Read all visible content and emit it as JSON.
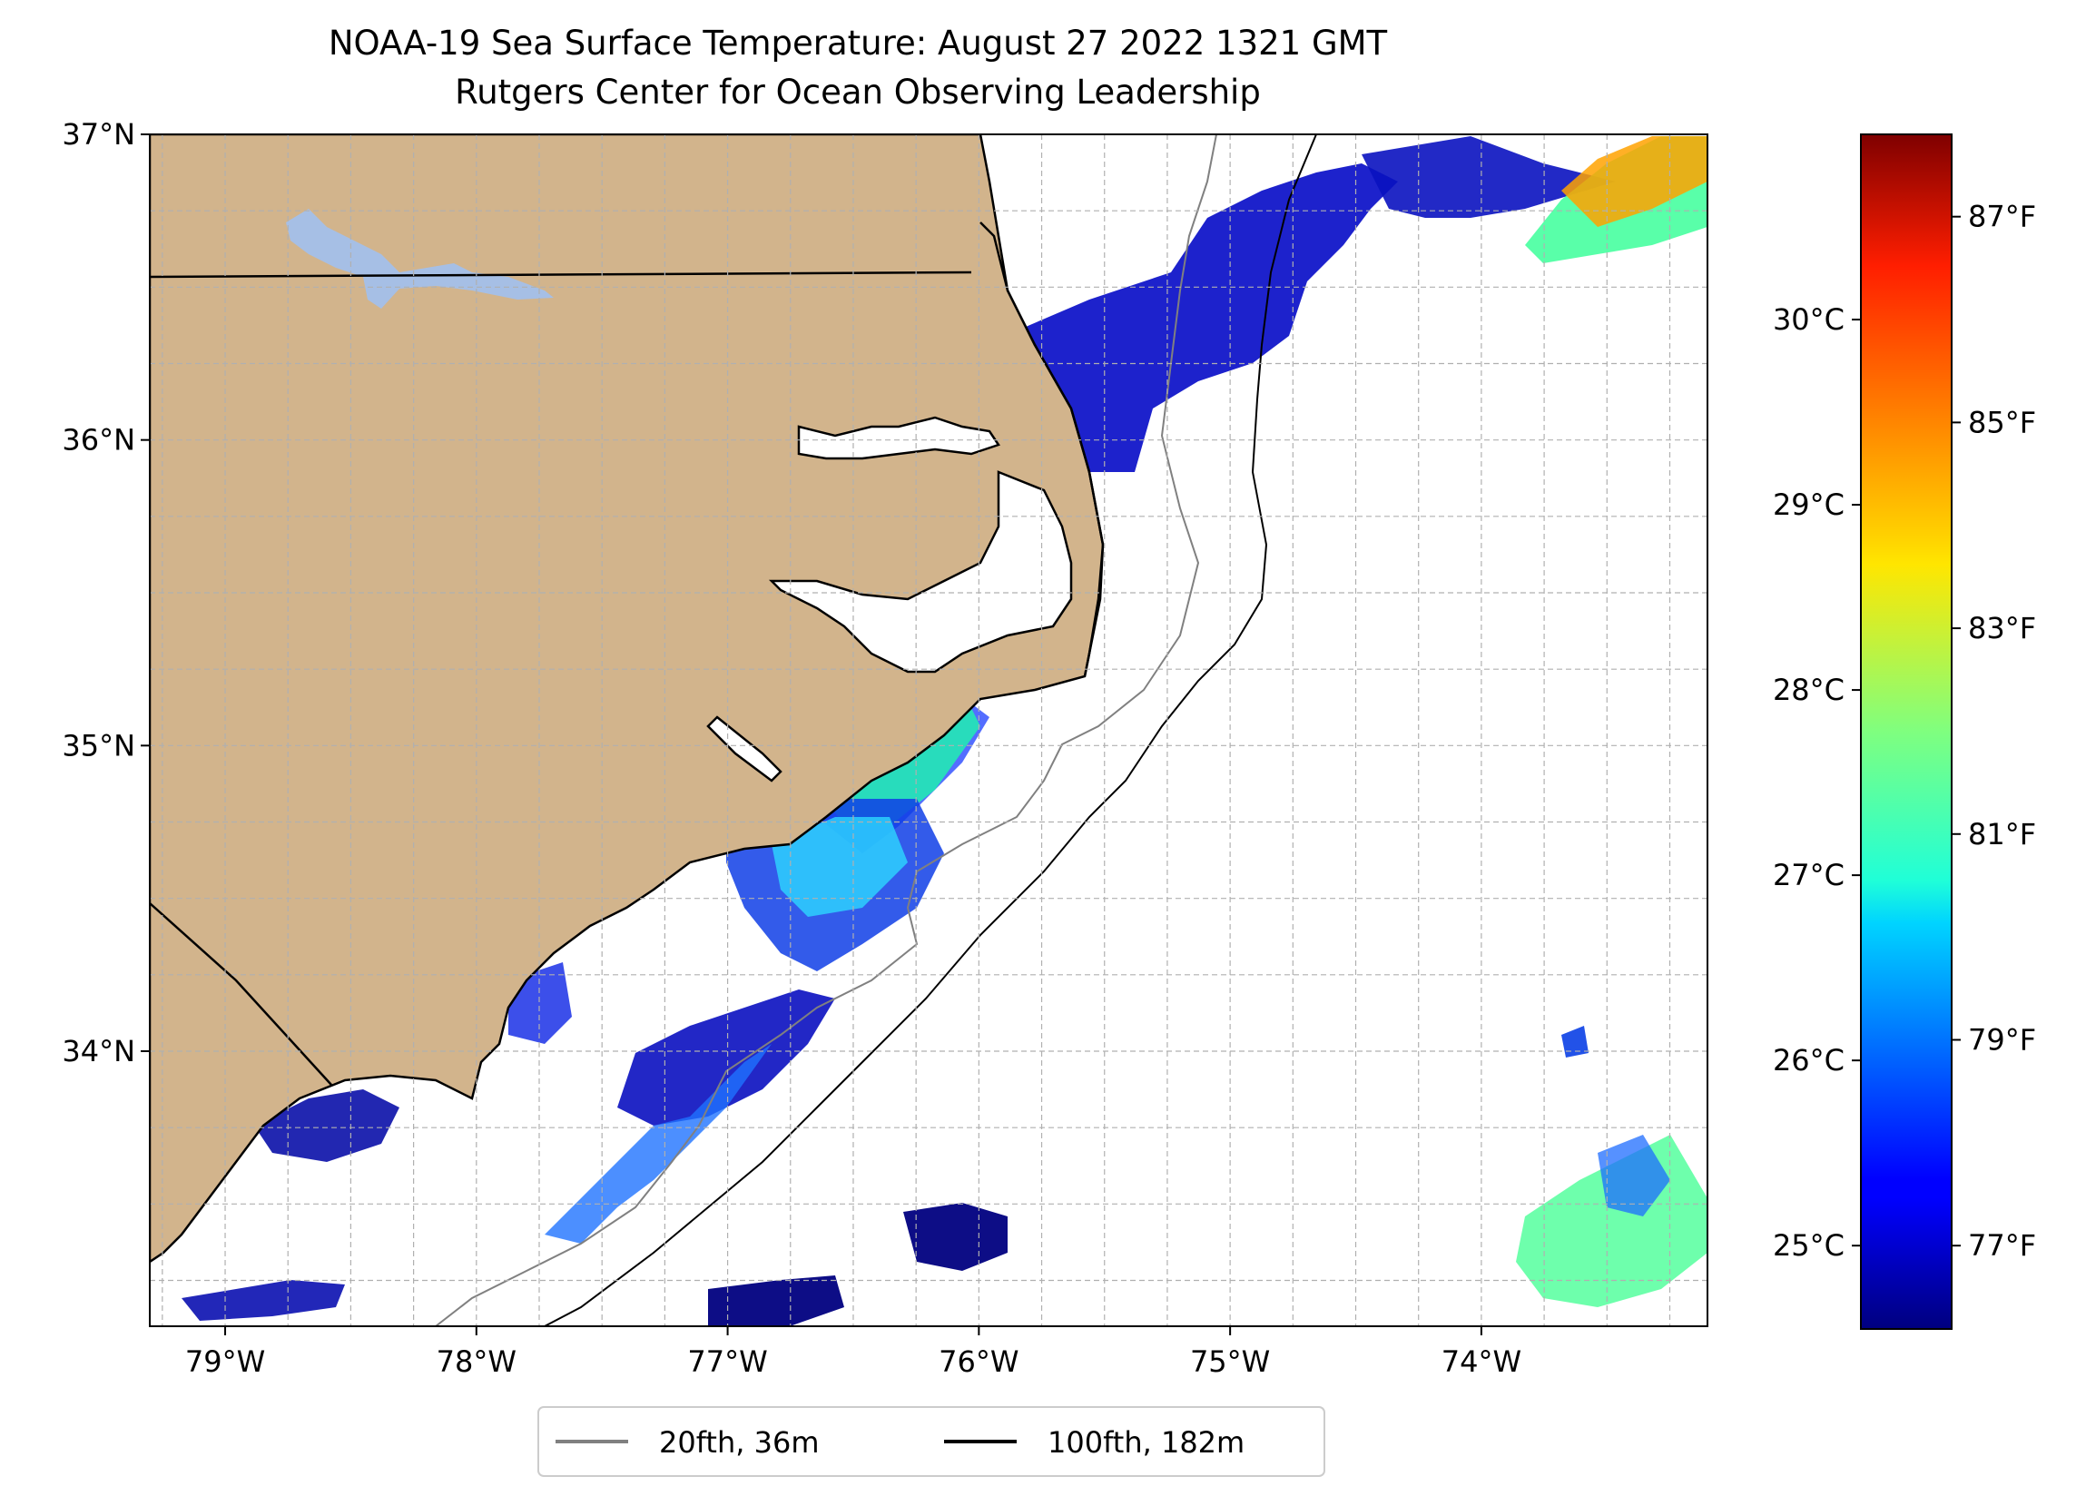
{
  "title": "NOAA-19 Sea Surface Temperature: August 27 2022 1321 GMT",
  "subtitle": "Rutgers Center for Ocean Observing Leadership",
  "map": {
    "lon_range": [
      -79.3,
      -73.1
    ],
    "lat_range": [
      33.1,
      37.0
    ],
    "lon_ticks": [
      {
        "value": -79,
        "label": "79°W"
      },
      {
        "value": -78,
        "label": "78°W"
      },
      {
        "value": -77,
        "label": "77°W"
      },
      {
        "value": -76,
        "label": "76°W"
      },
      {
        "value": -75,
        "label": "75°W"
      },
      {
        "value": -74,
        "label": "74°W"
      }
    ],
    "lat_ticks": [
      {
        "value": 37,
        "label": "37°N"
      },
      {
        "value": 36,
        "label": "36°N"
      },
      {
        "value": 35,
        "label": "35°N"
      },
      {
        "value": 34,
        "label": "34°N"
      }
    ],
    "land_color": "#d2b48c",
    "lake_color": "#a6bfe5",
    "grid": true
  },
  "legend": {
    "placement": "below map",
    "entries": [
      {
        "label": "20fth, 36m",
        "color": "#808080"
      },
      {
        "label": "100fth, 182m",
        "color": "#000000"
      }
    ]
  },
  "colorbar": {
    "colormap": "jet",
    "celsius_labels": [
      {
        "value": 30,
        "label": "30°C"
      },
      {
        "value": 29,
        "label": "29°C"
      },
      {
        "value": 28,
        "label": "28°C"
      },
      {
        "value": 27,
        "label": "27°C"
      },
      {
        "value": 26,
        "label": "26°C"
      },
      {
        "value": 25,
        "label": "25°C"
      }
    ],
    "fahrenheit_labels": [
      {
        "value": 87,
        "label": "87°F"
      },
      {
        "value": 85,
        "label": "85°F"
      },
      {
        "value": 83,
        "label": "83°F"
      },
      {
        "value": 81,
        "label": "81°F"
      },
      {
        "value": 79,
        "label": "79°F"
      },
      {
        "value": 77,
        "label": "77°F"
      }
    ]
  }
}
